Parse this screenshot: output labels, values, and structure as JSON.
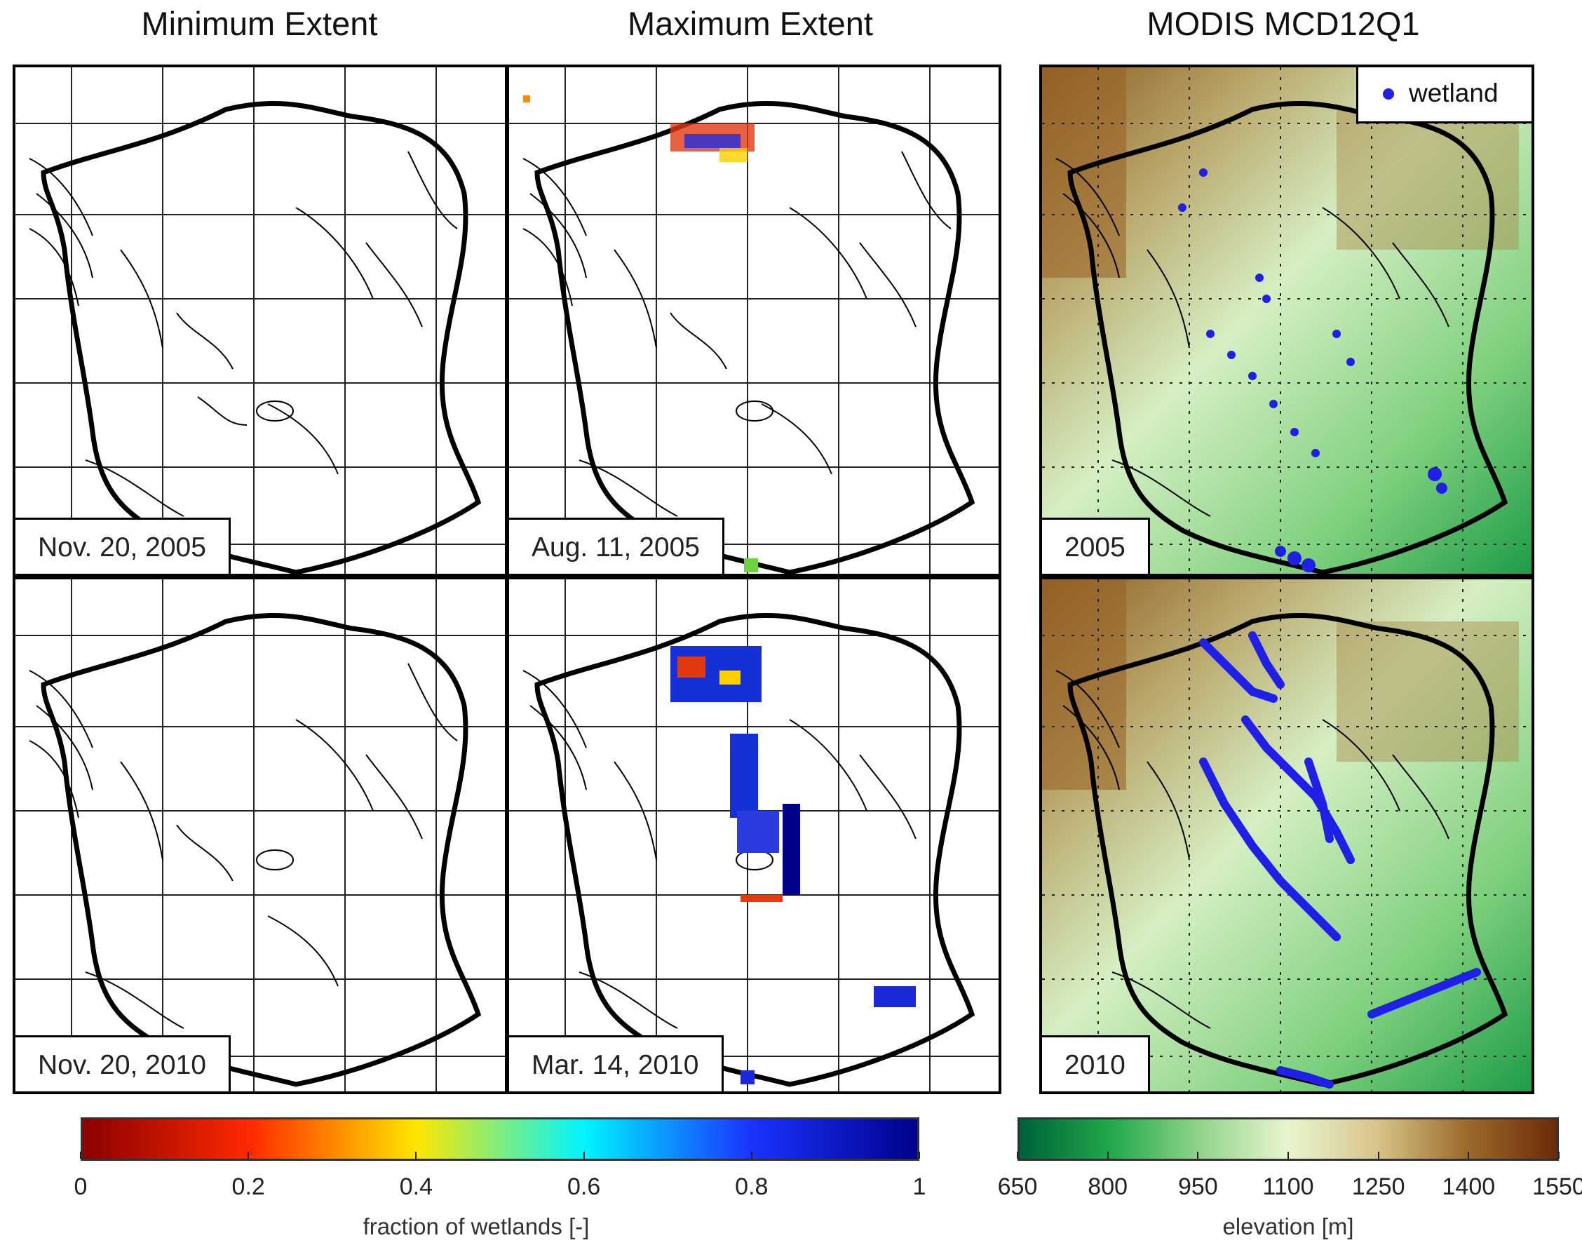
{
  "columns": {
    "min_title": "Minimum Extent",
    "max_title": "Maximum Extent",
    "modis_title": "MODIS MCD12Q1"
  },
  "panels": {
    "min_2005": "Nov. 20, 2005",
    "max_2005": "Aug. 11, 2005",
    "modis_2005": "2005",
    "min_2010": "Nov. 20, 2010",
    "max_2010": "Mar. 14, 2010",
    "modis_2010": "2010"
  },
  "legend": {
    "wetland_label": "wetland",
    "wetland_color": "#1f1fe6"
  },
  "colorbars": {
    "fraction": {
      "ticks": [
        "0",
        "0.2",
        "0.4",
        "0.6",
        "0.8",
        "1"
      ],
      "title": "fraction of wetlands [-]",
      "colors": [
        "#8b0000",
        "#ff2a00",
        "#ffe600",
        "#00f5ff",
        "#1a33ff",
        "#00008b"
      ]
    },
    "elevation": {
      "ticks": [
        "650",
        "800",
        "950",
        "1100",
        "1250",
        "1400",
        "1550"
      ],
      "title": "elevation [m]",
      "colors": [
        "#00603a",
        "#1fa84a",
        "#8fd48a",
        "#e9f5cf",
        "#d8c48a",
        "#9b6a2a",
        "#6b2a0a"
      ]
    }
  }
}
